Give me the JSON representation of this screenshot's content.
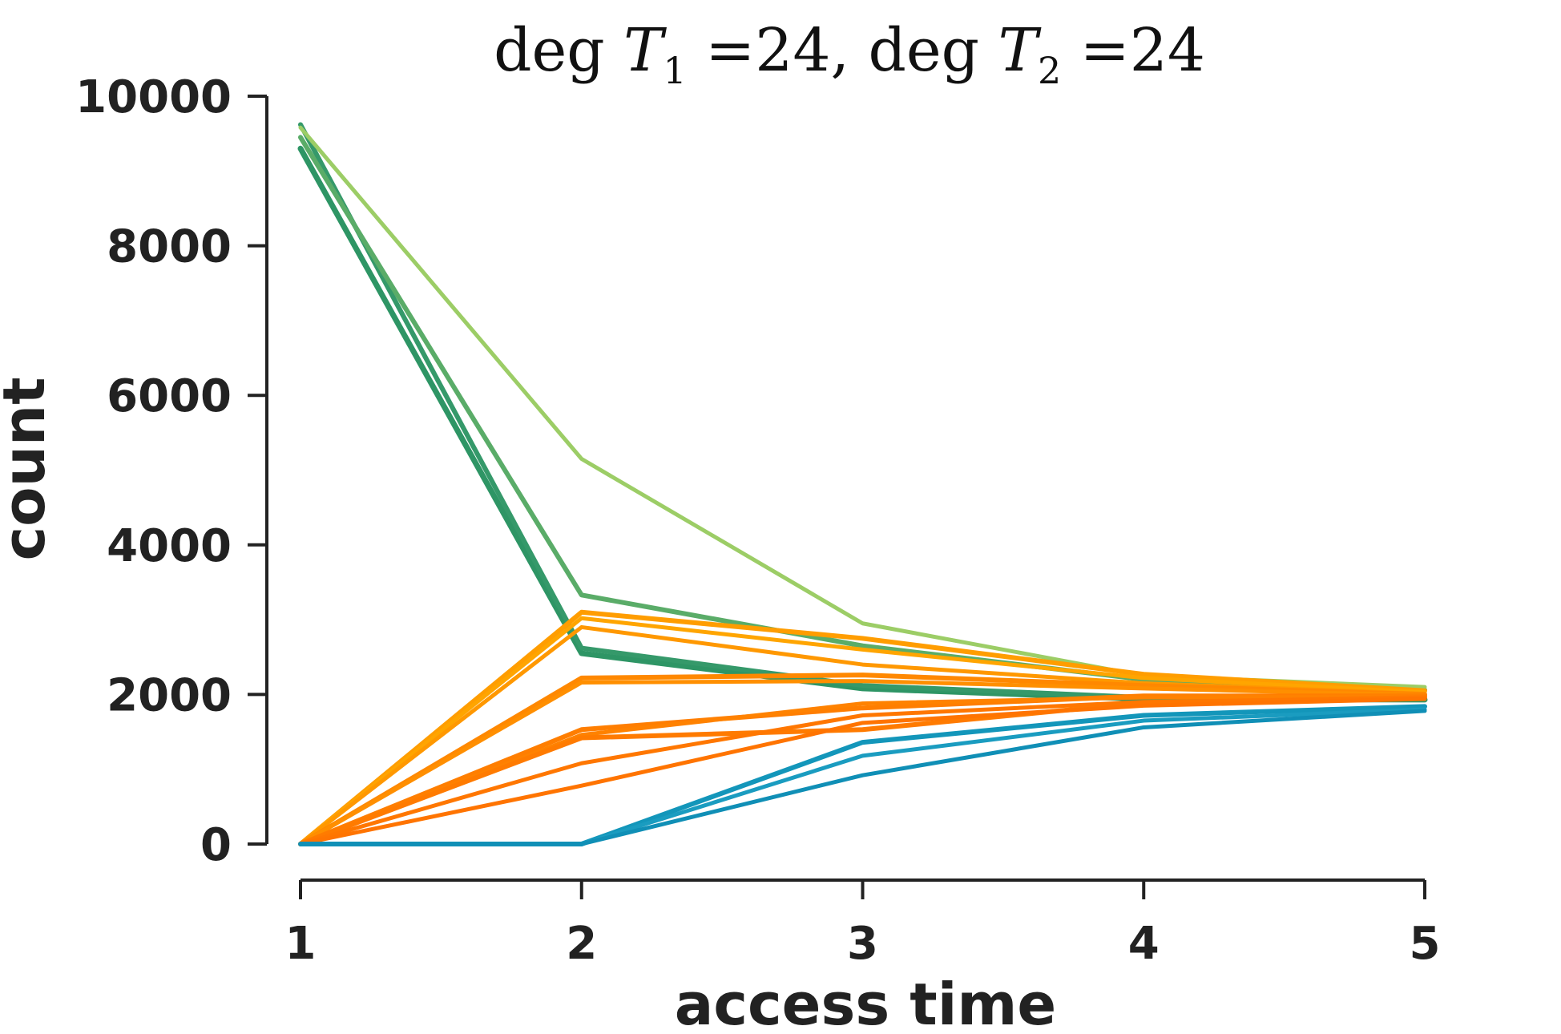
{
  "chart_data": {
    "type": "line",
    "title": {
      "text": "deg T",
      "parts": [
        {
          "text": "deg ",
          "italic": false
        },
        {
          "text": "T",
          "italic": true
        },
        {
          "text": "1",
          "sub": true
        },
        {
          "text": " =24, deg ",
          "italic": false
        },
        {
          "text": "T",
          "italic": true
        },
        {
          "text": "2",
          "sub": true
        },
        {
          "text": " =24",
          "italic": false
        }
      ]
    },
    "xlabel": "access time",
    "ylabel": "count",
    "x": [
      1,
      2,
      3,
      4,
      5
    ],
    "xticks": [
      1,
      2,
      3,
      4,
      5
    ],
    "xtick_labels": [
      "1",
      "2",
      "3",
      "4",
      "5"
    ],
    "yticks": [
      0,
      2000,
      4000,
      6000,
      8000,
      10000
    ],
    "ytick_labels": [
      "0",
      "2000",
      "4000",
      "6000",
      "8000",
      "10000"
    ],
    "xlim": [
      1,
      5
    ],
    "ylim": [
      0,
      10000
    ],
    "grid": false,
    "legend": false,
    "series": [
      {
        "color": "#2e9565",
        "width": 7,
        "values": [
          9300,
          2550,
          2080,
          1940,
          1930
        ]
      },
      {
        "color": "#35996a",
        "width": 6,
        "values": [
          9620,
          2620,
          2120,
          1960,
          1940
        ]
      },
      {
        "color": "#5aac68",
        "width": 6,
        "values": [
          9450,
          3330,
          2650,
          2200,
          2060
        ]
      },
      {
        "color": "#9ccd66",
        "width": 5,
        "values": [
          9580,
          5150,
          2950,
          2250,
          2100
        ]
      },
      {
        "color": "#ff9d00",
        "width": 6,
        "values": [
          0,
          3100,
          2750,
          2270,
          2050
        ]
      },
      {
        "color": "#ffa500",
        "width": 5,
        "values": [
          0,
          3020,
          2600,
          2220,
          2030
        ]
      },
      {
        "color": "#ff9800",
        "width": 5,
        "values": [
          0,
          2900,
          2400,
          2150,
          2010
        ]
      },
      {
        "color": "#ff8800",
        "width": 6,
        "values": [
          0,
          2220,
          2260,
          2120,
          2000
        ]
      },
      {
        "color": "#ff8f00",
        "width": 5,
        "values": [
          0,
          2160,
          2180,
          2080,
          1990
        ]
      },
      {
        "color": "#ff7e00",
        "width": 6,
        "values": [
          0,
          1530,
          1820,
          1980,
          1980
        ]
      },
      {
        "color": "#ff8200",
        "width": 5,
        "values": [
          0,
          1460,
          1880,
          1960,
          1975
        ]
      },
      {
        "color": "#ff7b00",
        "width": 6,
        "values": [
          0,
          1420,
          1530,
          1890,
          1960
        ]
      },
      {
        "color": "#ff7700",
        "width": 5,
        "values": [
          0,
          1080,
          1720,
          1900,
          1950
        ]
      },
      {
        "color": "#ff7400",
        "width": 5,
        "values": [
          0,
          780,
          1620,
          1850,
          1940
        ]
      },
      {
        "color": "#1396ba",
        "width": 6,
        "values": [
          0,
          0,
          1360,
          1720,
          1840
        ]
      },
      {
        "color": "#1a9cc0",
        "width": 5,
        "values": [
          0,
          0,
          1180,
          1650,
          1800
        ]
      },
      {
        "color": "#108fb6",
        "width": 5,
        "values": [
          0,
          0,
          920,
          1560,
          1780
        ]
      }
    ]
  }
}
